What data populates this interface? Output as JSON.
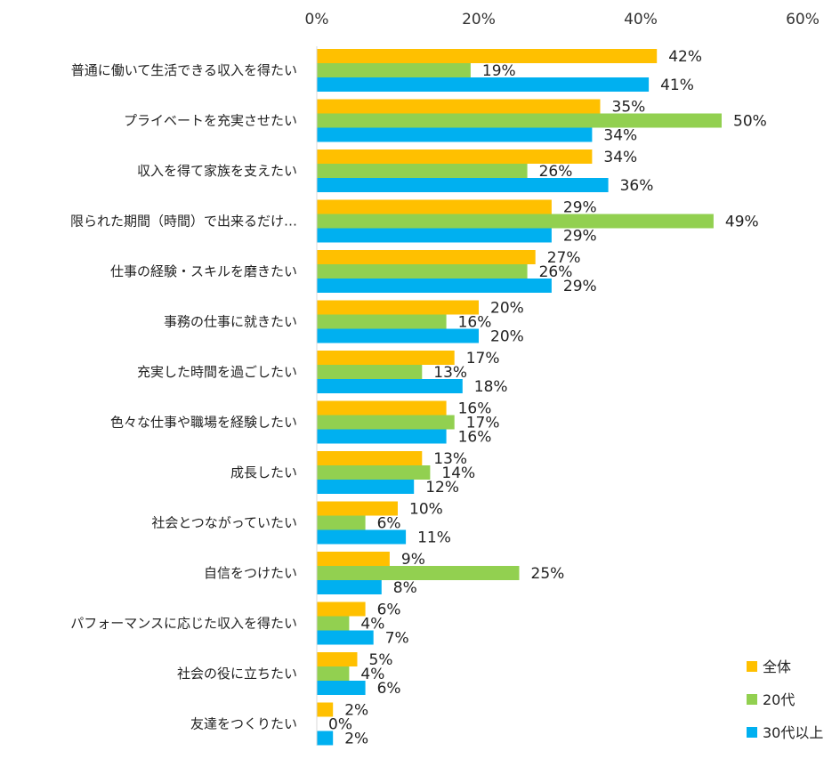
{
  "chart_data": {
    "type": "bar",
    "orientation": "horizontal",
    "categories": [
      "普通に働いて生活できる収入を得たい",
      "プライベートを充実させたい",
      "収入を得て家族を支えたい",
      "限られた期間（時間）で出来るだけ…",
      "仕事の経験・スキルを磨きたい",
      "事務の仕事に就きたい",
      "充実した時間を過ごしたい",
      "色々な仕事や職場を経験したい",
      "成長したい",
      "社会とつながっていたい",
      "自信をつけたい",
      "パフォーマンスに応じた収入を得たい",
      "社会の役に立ちたい",
      "友達をつくりたい"
    ],
    "series": [
      {
        "name": "全体",
        "color": "#FFC000",
        "values": [
          42,
          35,
          34,
          29,
          27,
          20,
          17,
          16,
          13,
          10,
          9,
          6,
          5,
          2
        ]
      },
      {
        "name": "20代",
        "color": "#92D050",
        "values": [
          19,
          50,
          26,
          49,
          26,
          16,
          13,
          17,
          14,
          6,
          25,
          4,
          4,
          0
        ]
      },
      {
        "name": "30代以上",
        "color": "#00B0F0",
        "values": [
          41,
          34,
          36,
          29,
          29,
          20,
          18,
          16,
          12,
          11,
          8,
          7,
          6,
          2
        ]
      }
    ],
    "value_suffix": "%",
    "xlim": [
      0,
      60
    ],
    "xticks": [
      "0%",
      "20%",
      "40%",
      "60%"
    ],
    "x_axis_position": "top",
    "grid": false,
    "legend_position": "bottom-right"
  }
}
